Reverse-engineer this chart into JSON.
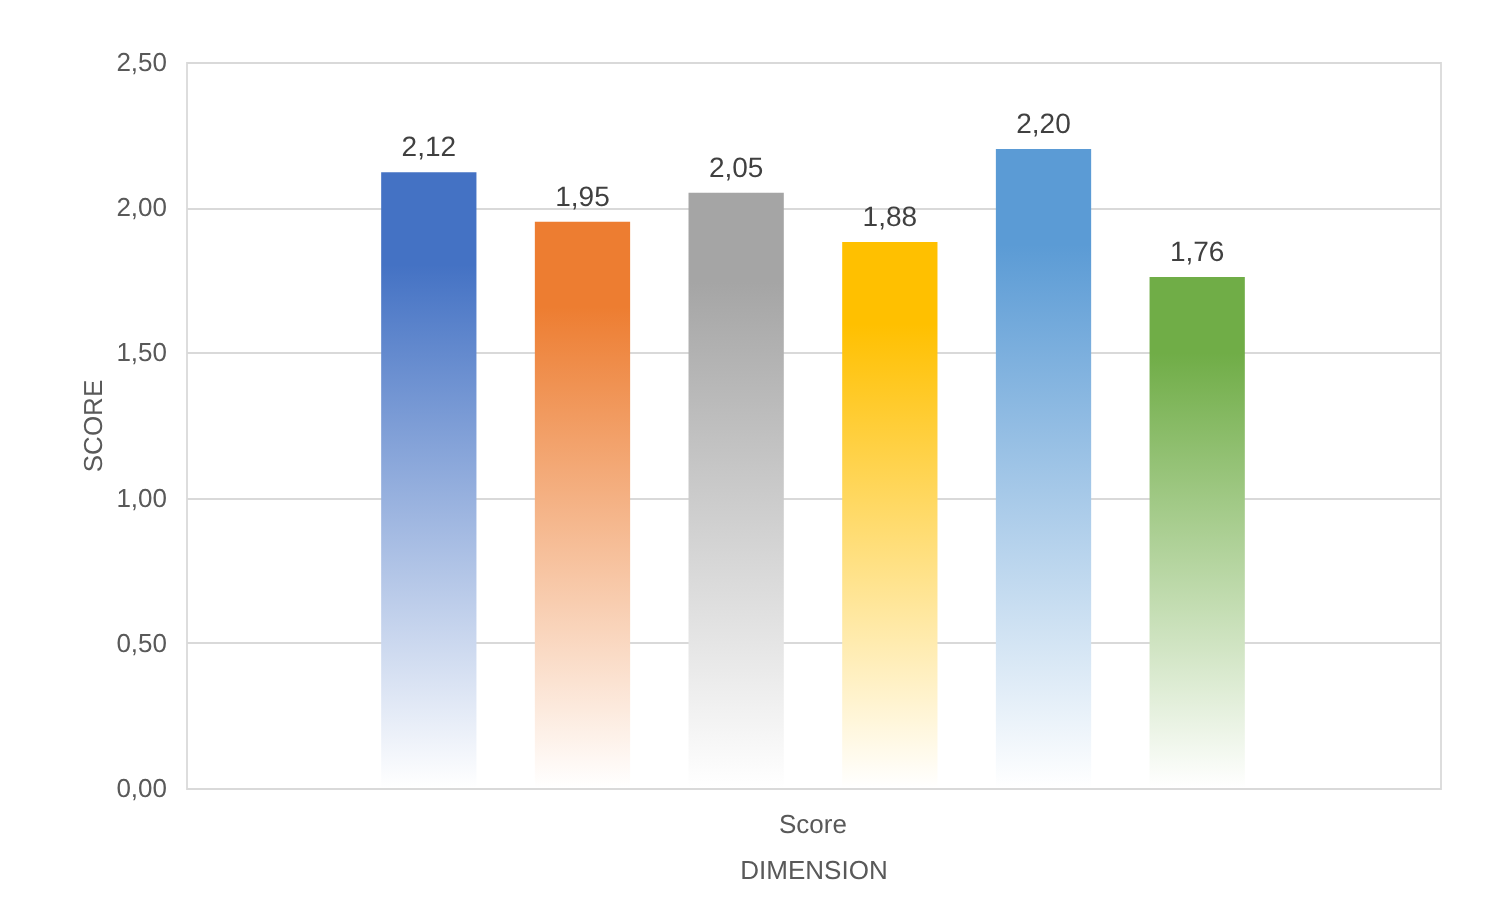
{
  "chart_data": {
    "type": "bar",
    "xlabel": "DIMENSION",
    "ylabel": "SCORE",
    "categories": [
      "Score"
    ],
    "series": [
      {
        "color": "#4472c4",
        "values": [
          2.12
        ],
        "value_labels": [
          "2,12"
        ]
      },
      {
        "color": "#ed7d31",
        "values": [
          1.95
        ],
        "value_labels": [
          "1,95"
        ]
      },
      {
        "color": "#a5a5a5",
        "values": [
          2.05
        ],
        "value_labels": [
          "2,05"
        ]
      },
      {
        "color": "#ffc000",
        "values": [
          1.88
        ],
        "value_labels": [
          "1,88"
        ]
      },
      {
        "color": "#5b9bd5",
        "values": [
          2.2
        ],
        "value_labels": [
          "2,20"
        ]
      },
      {
        "color": "#70ad47",
        "values": [
          1.76
        ],
        "value_labels": [
          "1,76"
        ]
      }
    ],
    "ylim": [
      0,
      2.5
    ],
    "yticks": [
      {
        "value": 0,
        "label": "0,00"
      },
      {
        "value": 0.5,
        "label": "0,50"
      },
      {
        "value": 1,
        "label": "1,00"
      },
      {
        "value": 1.5,
        "label": "1,50"
      },
      {
        "value": 2,
        "label": "2,00"
      },
      {
        "value": 2.5,
        "label": "2,50"
      }
    ],
    "grid": "y"
  }
}
